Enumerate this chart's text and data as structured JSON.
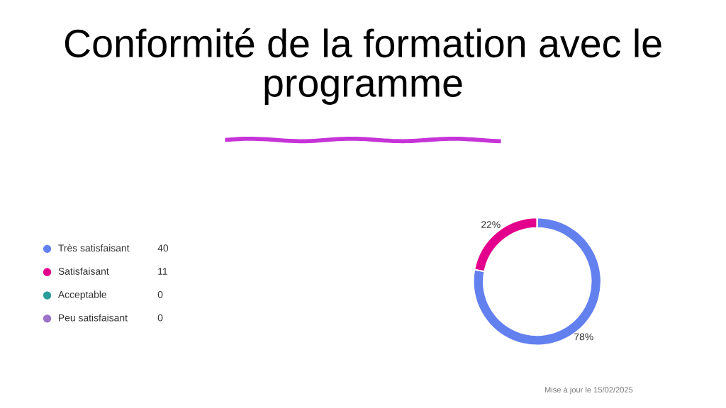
{
  "chart_data": {
    "type": "donut",
    "title": "Conformité de la formation avec le programme",
    "categories": [
      "Très satisfaisant",
      "Satisfaisant",
      "Acceptable",
      "Peu satisfaisant"
    ],
    "values": [
      78,
      22,
      0,
      0
    ],
    "colors": [
      "#6380ef",
      "#e3008c",
      "#2a9d9a",
      "#9b72c6"
    ],
    "value_labels": [
      "78%",
      "22%",
      null,
      null
    ],
    "legend": "left",
    "annotations": [
      {
        "text": "40",
        "x": "Très satisfaisant"
      },
      {
        "text": "11",
        "x": "Satisfaisant"
      },
      {
        "text": "0",
        "x": "Acceptable"
      },
      {
        "text": "0",
        "x": "Peu satisfaisant"
      },
      "Mise à jour le 15/02/2025"
    ]
  }
}
